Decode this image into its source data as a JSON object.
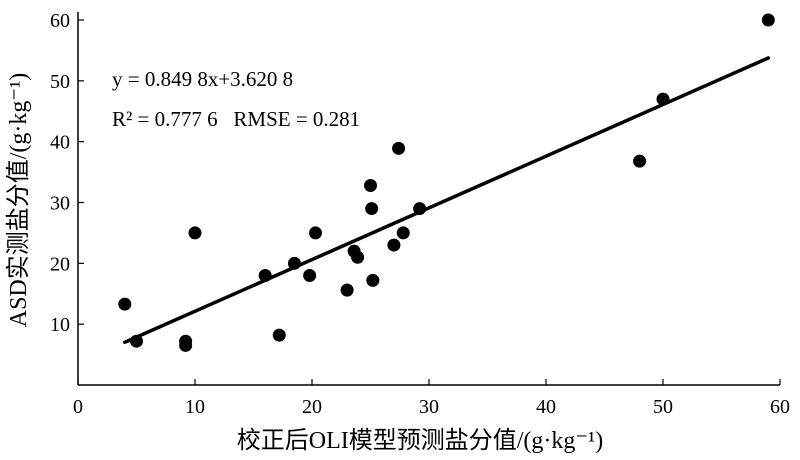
{
  "chart_data": {
    "type": "scatter",
    "xlabel": "校正后OLI模型预测盐分值/(g·kg⁻¹)",
    "ylabel": "ASD实测盐分值/(g·kg⁻¹)",
    "xlim": [
      0,
      60
    ],
    "ylim": [
      0,
      60
    ],
    "x_ticks": [
      "0",
      "10",
      "20",
      "30",
      "40",
      "50",
      "60"
    ],
    "y_ticks": [
      "10",
      "20",
      "30",
      "40",
      "50",
      "60"
    ],
    "grid": false,
    "annotations": {
      "equation": "y = 0.849 8x+3.620 8",
      "stats": "R² = 0.777 6   RMSE = 0.281"
    },
    "fit": {
      "slope": 0.8498,
      "intercept": 3.6208,
      "x_range": [
        4,
        59
      ]
    },
    "points": [
      {
        "x": 4.0,
        "y": 13.3
      },
      {
        "x": 5.0,
        "y": 7.2
      },
      {
        "x": 9.2,
        "y": 6.5
      },
      {
        "x": 9.2,
        "y": 7.2
      },
      {
        "x": 10.0,
        "y": 25.0
      },
      {
        "x": 16.0,
        "y": 18.0
      },
      {
        "x": 17.2,
        "y": 8.2
      },
      {
        "x": 18.5,
        "y": 20.0
      },
      {
        "x": 19.8,
        "y": 18.0
      },
      {
        "x": 20.3,
        "y": 25.0
      },
      {
        "x": 23.0,
        "y": 15.6
      },
      {
        "x": 23.6,
        "y": 22.0
      },
      {
        "x": 23.9,
        "y": 21.0
      },
      {
        "x": 25.0,
        "y": 32.8
      },
      {
        "x": 25.1,
        "y": 29.0
      },
      {
        "x": 25.2,
        "y": 17.2
      },
      {
        "x": 27.0,
        "y": 23.0
      },
      {
        "x": 27.4,
        "y": 38.9
      },
      {
        "x": 27.8,
        "y": 25.0
      },
      {
        "x": 29.2,
        "y": 29.0
      },
      {
        "x": 48.0,
        "y": 36.8
      },
      {
        "x": 50.0,
        "y": 47.0
      },
      {
        "x": 59.0,
        "y": 60.0
      }
    ]
  }
}
